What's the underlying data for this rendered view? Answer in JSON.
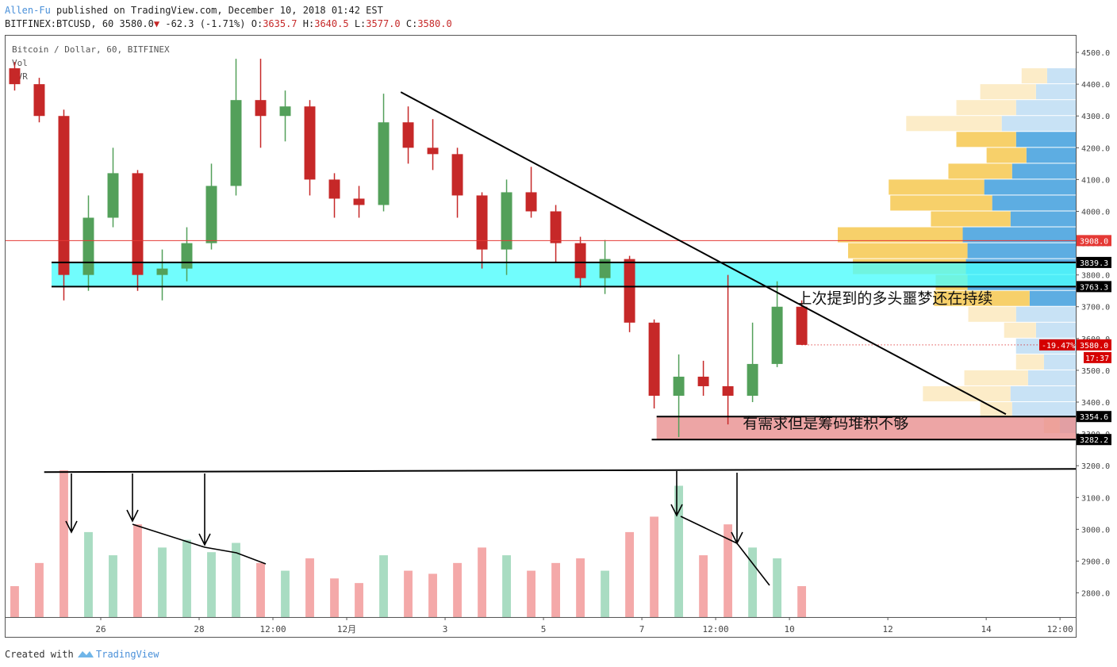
{
  "header": {
    "author": "Allen-Fu",
    "published": "published on TradingView.com, December 10, 2018 01:42 EST"
  },
  "quote": {
    "symbol": "BITFINEX:BTCUSD, 60",
    "last": "3580.0",
    "arrow": "▼",
    "change": "-62.3 (-1.71%)",
    "ohlc": [
      {
        "label": "O:",
        "value": "3635.7"
      },
      {
        "label": "H:",
        "value": "3640.5"
      },
      {
        "label": "L:",
        "value": "3577.0"
      },
      {
        "label": "C:",
        "value": "3580.0"
      }
    ]
  },
  "chart_data": {
    "type": "candlestick",
    "legend": [
      "Bitcoin / Dollar, 60, BITFINEX",
      "Vol",
      "VVR"
    ],
    "up_color": "#53a05a",
    "down_color": "#c62828",
    "vol_up_color": "#a9dcc2",
    "vol_down_color": "#f4a9a9",
    "x": [
      0.25,
      0.75,
      1.25,
      1.75,
      2.25,
      2.75,
      3.25,
      3.75,
      4.25,
      4.75,
      5.25,
      5.75,
      6.25,
      6.75,
      7.25,
      7.75,
      8.25,
      8.75,
      9.25,
      9.75,
      10.25,
      10.75,
      11.25,
      11.75,
      12.25,
      12.75,
      13.25,
      13.75,
      14.25,
      14.75,
      15.25,
      15.75,
      16.25
    ],
    "open": [
      4450,
      4400,
      4300,
      3800,
      3980,
      4120,
      3800,
      3820,
      3900,
      4080,
      4350,
      4300,
      4330,
      4100,
      4040,
      4020,
      4280,
      4200,
      4180,
      4050,
      3880,
      4060,
      4000,
      3900,
      3790,
      3850,
      3650,
      3420,
      3480,
      3450,
      3420,
      3520,
      3700
    ],
    "high": [
      4470,
      4420,
      4320,
      4050,
      4200,
      4130,
      3880,
      3950,
      4150,
      4480,
      4480,
      4380,
      4350,
      4120,
      4080,
      4370,
      4330,
      4290,
      4200,
      4060,
      4100,
      4140,
      4020,
      3920,
      3910,
      3860,
      3660,
      3550,
      3530,
      3800,
      3650,
      3780,
      3720
    ],
    "low": [
      4380,
      4280,
      3720,
      3750,
      3950,
      3750,
      3720,
      3780,
      3880,
      4050,
      4200,
      4220,
      4050,
      3980,
      3980,
      4000,
      4150,
      4130,
      3980,
      3820,
      3800,
      3980,
      3840,
      3760,
      3740,
      3620,
      3380,
      3290,
      3420,
      3330,
      3400,
      3510,
      3580
    ],
    "close": [
      4400,
      4300,
      3800,
      3980,
      4120,
      3800,
      3820,
      3900,
      4080,
      4350,
      4300,
      4330,
      4100,
      4040,
      4020,
      4280,
      4200,
      4180,
      4050,
      3880,
      4060,
      4000,
      3900,
      3790,
      3850,
      3650,
      3420,
      3480,
      3450,
      3420,
      3520,
      3700,
      3580
    ],
    "volume": [
      20,
      35,
      95,
      55,
      40,
      60,
      45,
      50,
      42,
      48,
      35,
      30,
      38,
      25,
      22,
      40,
      30,
      28,
      35,
      45,
      40,
      30,
      35,
      38,
      30,
      55,
      65,
      85,
      40,
      60,
      45,
      38,
      20
    ],
    "xlim": [
      0.065,
      21.82
    ],
    "xticks": [
      {
        "value": 2,
        "label": "26"
      },
      {
        "value": 4,
        "label": "28"
      },
      {
        "value": 5.5,
        "label": "12:00"
      },
      {
        "value": 7,
        "label": "12月"
      },
      {
        "value": 9,
        "label": "3"
      },
      {
        "value": 11,
        "label": "5"
      },
      {
        "value": 13,
        "label": "7"
      },
      {
        "value": 14.5,
        "label": "12:00"
      },
      {
        "value": 16,
        "label": "10"
      },
      {
        "value": 18,
        "label": "12"
      },
      {
        "value": 20,
        "label": "14"
      },
      {
        "value": 21.5,
        "label": "12:00"
      }
    ],
    "ylim": [
      2724,
      4555
    ],
    "yticks": [
      {
        "value": 4500,
        "label": "4500.0"
      },
      {
        "value": 4400,
        "label": "4400.0"
      },
      {
        "value": 4300,
        "label": "4300.0"
      },
      {
        "value": 4200,
        "label": "4200.0"
      },
      {
        "value": 4100,
        "label": "4100.0"
      },
      {
        "value": 4000,
        "label": "4000.0"
      },
      {
        "value": 3900,
        "label": "3900.0"
      },
      {
        "value": 3800,
        "label": "3800.0"
      },
      {
        "value": 3700,
        "label": "3700.0"
      },
      {
        "value": 3600,
        "label": "3600.0"
      },
      {
        "value": 3500,
        "label": "3500.0"
      },
      {
        "value": 3400,
        "label": "3400.0"
      },
      {
        "value": 3300,
        "label": "3300.0"
      },
      {
        "value": 3200,
        "label": "3200.0"
      },
      {
        "value": 3100,
        "label": "3100.0"
      },
      {
        "value": 3000,
        "label": "3000.0"
      },
      {
        "value": 2900,
        "label": "2900.0"
      },
      {
        "value": 2800,
        "label": "2800.0"
      }
    ],
    "zones": [
      {
        "low": 3763.3,
        "high": 3839.3,
        "from": 1.0,
        "color": "#4dfdfd"
      },
      {
        "low": 3282.2,
        "high": 3354.6,
        "from": 13.3,
        "color": "#e88f8f"
      }
    ],
    "levels": [
      {
        "value": 3908.0,
        "label": "3908.0",
        "color": "#e53935",
        "from": 0.065
      },
      {
        "value": 3839.3,
        "label": "3839.3",
        "color": "#000000",
        "from": 1.0
      },
      {
        "value": 3763.3,
        "label": "3763.3",
        "color": "#000000",
        "from": 1.0
      },
      {
        "value": 3354.6,
        "label": "3354.6",
        "color": "#000000",
        "from": 13.3
      },
      {
        "value": 3282.2,
        "label": "3282.2",
        "color": "#000000",
        "from": 13.2
      }
    ],
    "last_price": {
      "value": 3580.0,
      "label": "3580.0",
      "change": "-19.47%",
      "countdown": "17:37",
      "color": "#d50000"
    },
    "trend_lines": [
      {
        "x": [
          8.1,
          20.4
        ],
        "y": [
          4375,
          3362
        ]
      },
      {
        "x": [
          0.85,
          21.82
        ],
        "y": [
          3180,
          3190
        ]
      }
    ],
    "annotations": [
      {
        "text": "上次提到的多头噩梦还在持续",
        "x": 16.15,
        "y": 3710
      },
      {
        "text": "有需求但是筹码堆积不够",
        "x": 15.05,
        "y": 3318
      }
    ],
    "volume_profile": {
      "value_area": [
        3700,
        4250
      ],
      "up_color": "#5dade2",
      "down_color": "#f7d06a",
      "up_light": "#c8e2f5",
      "down_light": "#fcecc8",
      "rows": [
        {
          "low": 4400,
          "high": 4450,
          "up": 36,
          "down": 32
        },
        {
          "low": 4350,
          "high": 4400,
          "up": 50,
          "down": 70
        },
        {
          "low": 4300,
          "high": 4350,
          "up": 75,
          "down": 75
        },
        {
          "low": 4250,
          "high": 4300,
          "up": 93,
          "down": 120
        },
        {
          "low": 4200,
          "high": 4250,
          "up": 75,
          "down": 75
        },
        {
          "low": 4150,
          "high": 4200,
          "up": 62,
          "down": 50
        },
        {
          "low": 4100,
          "high": 4150,
          "up": 80,
          "down": 80
        },
        {
          "low": 4050,
          "high": 4100,
          "up": 115,
          "down": 120
        },
        {
          "low": 4000,
          "high": 4050,
          "up": 105,
          "down": 128
        },
        {
          "low": 3950,
          "high": 4000,
          "up": 82,
          "down": 100
        },
        {
          "low": 3900,
          "high": 3950,
          "up": 142,
          "down": 157
        },
        {
          "low": 3850,
          "high": 3900,
          "up": 136,
          "down": 150
        },
        {
          "low": 3800,
          "high": 3850,
          "up": 138,
          "down": 142
        },
        {
          "low": 3750,
          "high": 3800,
          "up": 136,
          "down": 40
        },
        {
          "low": 3700,
          "high": 3750,
          "up": 58,
          "down": 120
        },
        {
          "low": 3650,
          "high": 3700,
          "up": 75,
          "down": 60
        },
        {
          "low": 3600,
          "high": 3650,
          "up": 50,
          "down": 40
        },
        {
          "low": 3550,
          "high": 3600,
          "up": 75,
          "down": 0
        },
        {
          "low": 3500,
          "high": 3550,
          "up": 40,
          "down": 35
        },
        {
          "low": 3450,
          "high": 3500,
          "up": 60,
          "down": 80
        },
        {
          "low": 3400,
          "high": 3450,
          "up": 82,
          "down": 110
        },
        {
          "low": 3350,
          "high": 3400,
          "up": 80,
          "down": 40
        },
        {
          "low": 3300,
          "high": 3350,
          "up": 20,
          "down": 20
        }
      ]
    }
  },
  "footer": {
    "created": "Created with",
    "brand": "TradingView"
  }
}
